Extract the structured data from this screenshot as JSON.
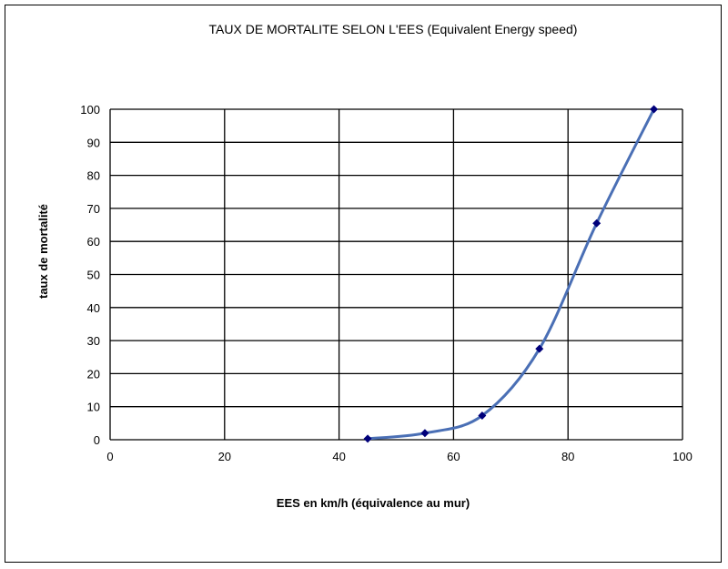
{
  "chart_data": {
    "type": "scatter",
    "title": "TAUX DE MORTALITE SELON L'EES (Equivalent Energy speed)",
    "xlabel": "EES en km/h (équivalence au mur)",
    "ylabel": "taux de mortalité",
    "xlim": [
      0,
      100
    ],
    "ylim": [
      0,
      100
    ],
    "x_ticks": [
      "0",
      "20",
      "40",
      "60",
      "80",
      "100"
    ],
    "y_ticks": [
      "0",
      "10",
      "20",
      "30",
      "40",
      "50",
      "60",
      "70",
      "80",
      "90",
      "100"
    ],
    "grid": true,
    "smooth_line": true,
    "series": [
      {
        "x": [
          45,
          55,
          65,
          75,
          85,
          95
        ],
        "y": [
          0.3,
          2,
          7.3,
          27.5,
          65.5,
          100
        ]
      }
    ],
    "colors": {
      "line": "#4a6fb5",
      "marker": "#00007a"
    }
  }
}
